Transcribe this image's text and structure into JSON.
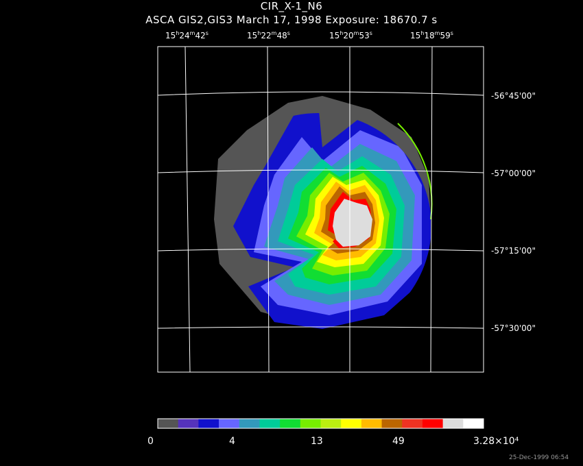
{
  "header": {
    "title": "CIR_X-1_N6",
    "subtitle": "ASCA GIS2,GIS3 March 17, 1998 Exposure: 18670.7 s"
  },
  "ra_labels": [
    {
      "h": "15",
      "m": "24",
      "s": "42"
    },
    {
      "h": "15",
      "m": "22",
      "s": "48"
    },
    {
      "h": "15",
      "m": "20",
      "s": "53"
    },
    {
      "h": "15",
      "m": "18",
      "s": "59"
    }
  ],
  "dec_labels": [
    "-56°45'00\"",
    "-57°00'00\"",
    "-57°15'00\"",
    "-57°30'00\""
  ],
  "colorbar": {
    "colors": [
      "#555555",
      "#5533bb",
      "#1111cc",
      "#6666ff",
      "#3399bb",
      "#00cc99",
      "#11dd33",
      "#77ee00",
      "#bbee11",
      "#ffff00",
      "#ffbb00",
      "#bb6600",
      "#ee3322",
      "#ff0000",
      "#dddddd",
      "#ffffff"
    ],
    "labels": [
      "0",
      "4",
      "13",
      "49",
      "3.28×10⁴"
    ]
  },
  "timestamp": "25-Dec-1999 06:54"
}
